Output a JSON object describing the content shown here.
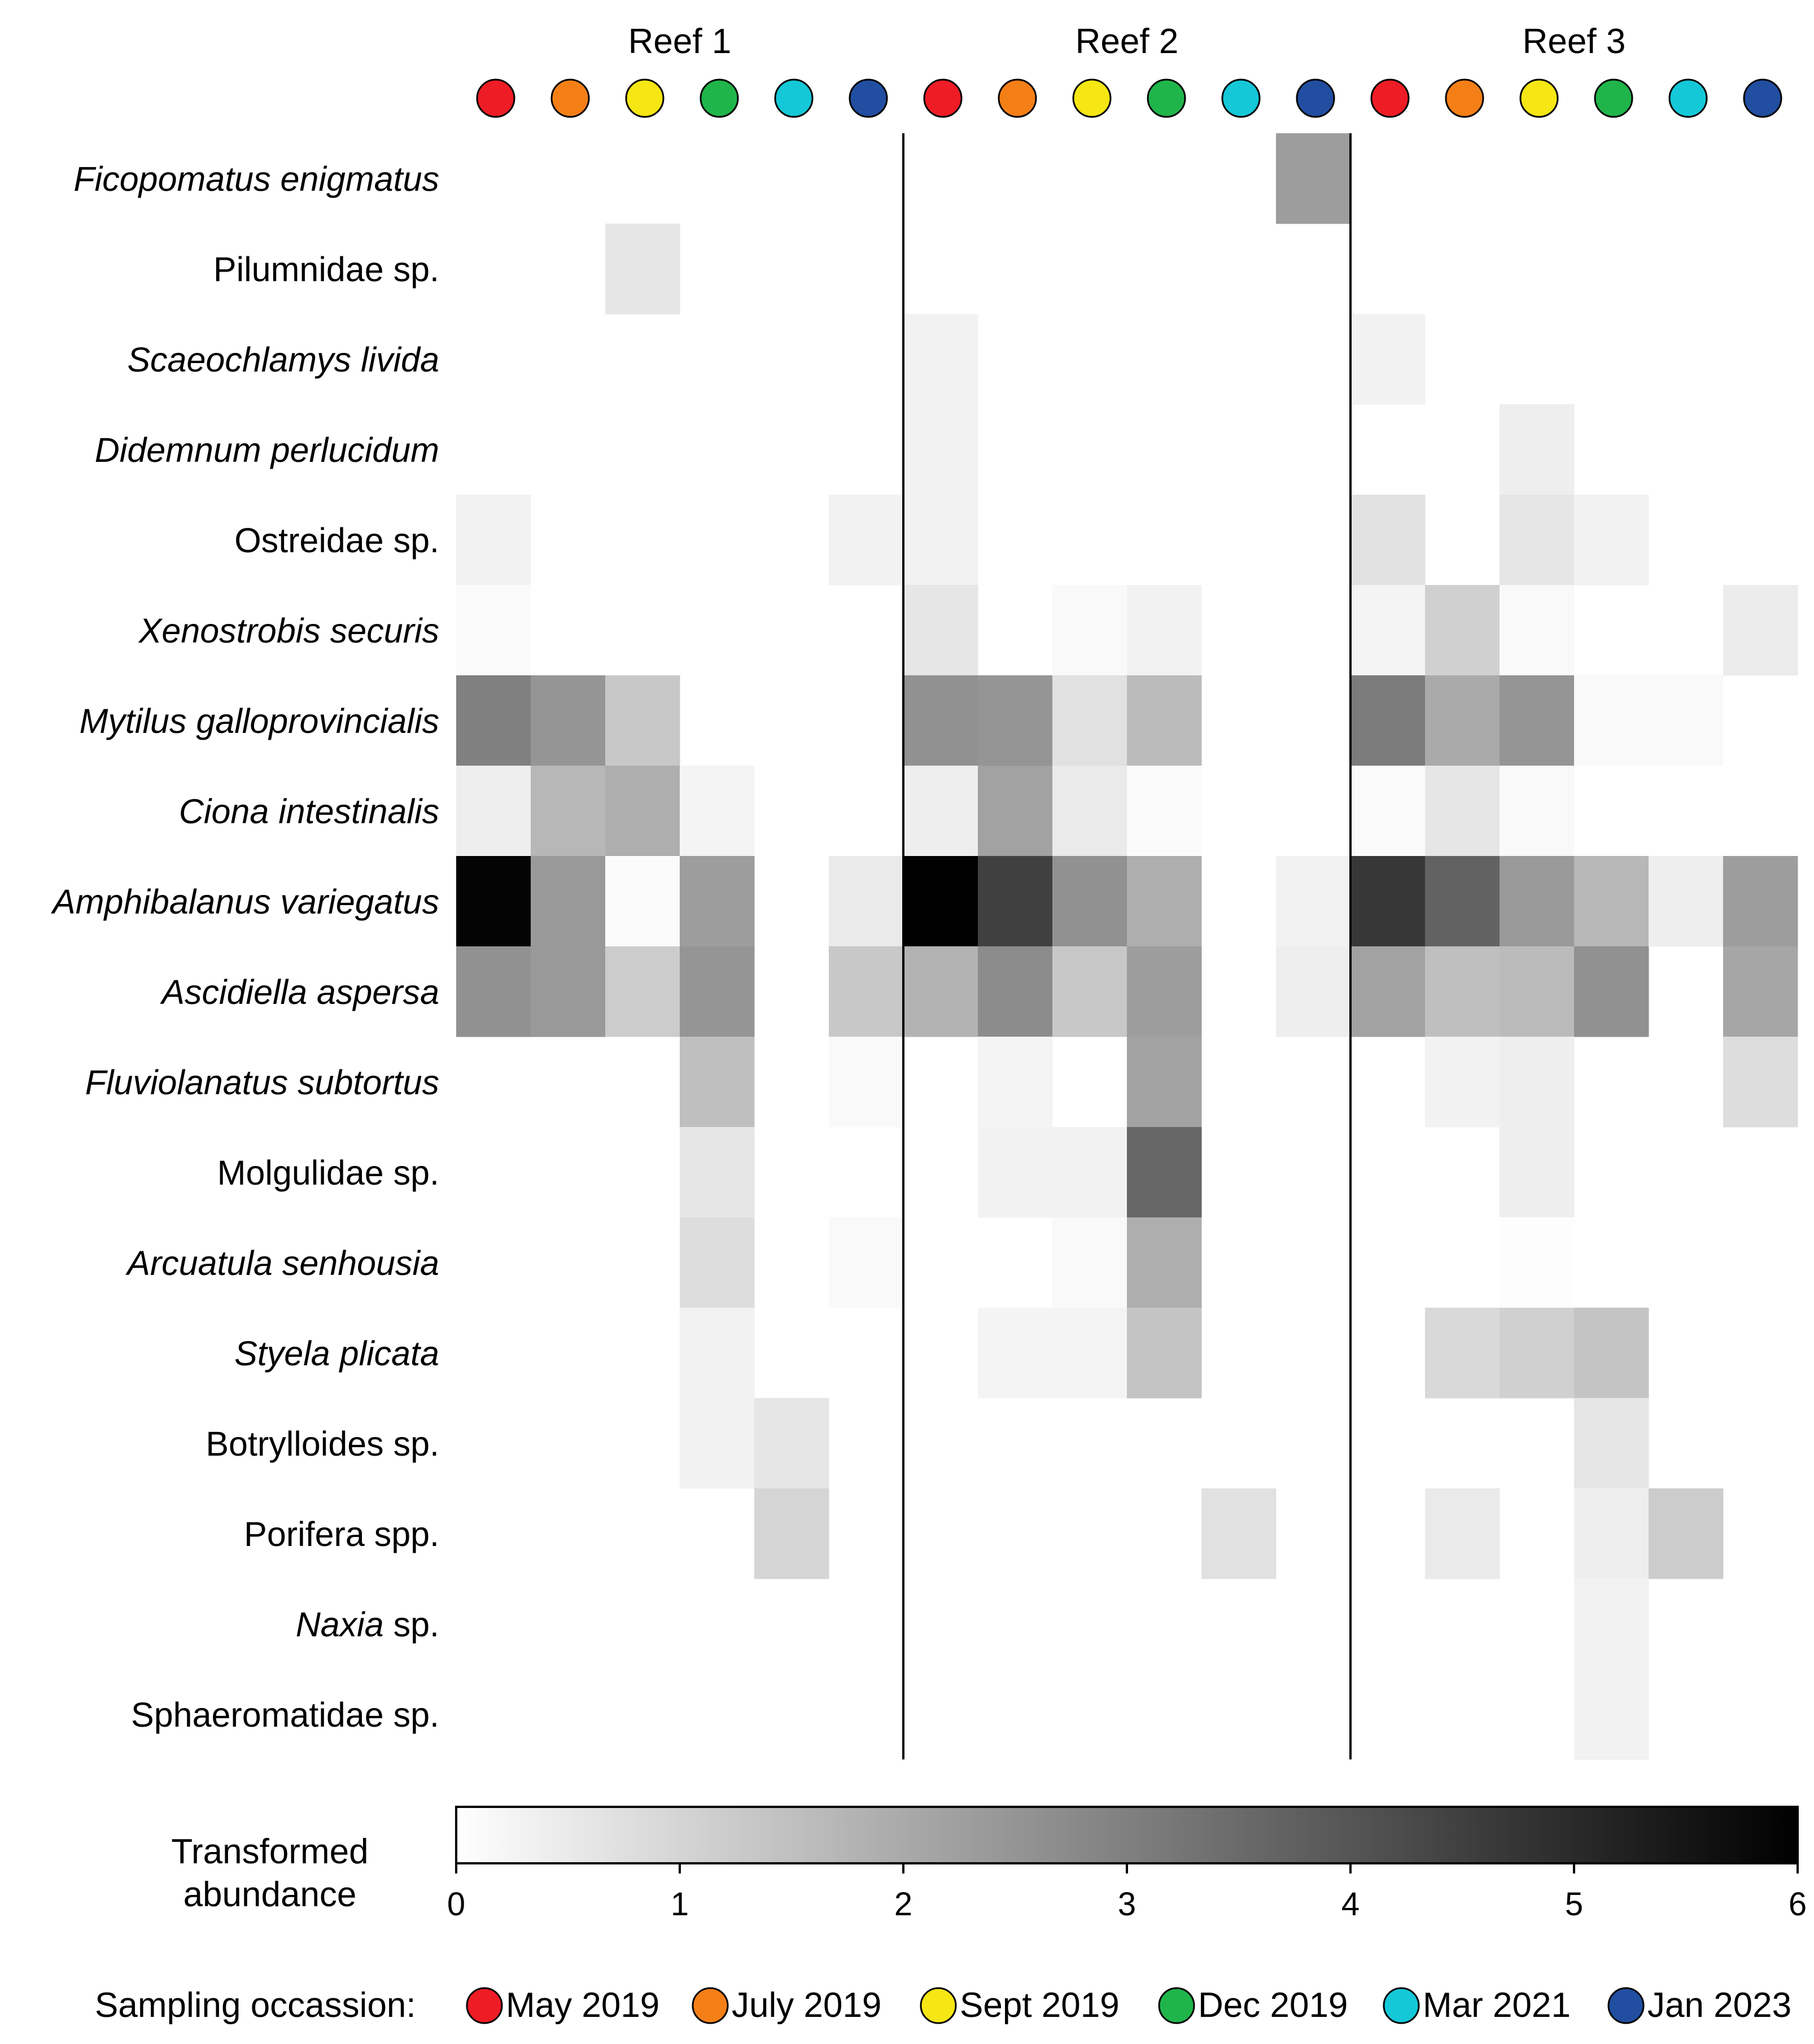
{
  "chart_data": {
    "type": "heatmap",
    "reefs": [
      "Reef 1",
      "Reef 2",
      "Reef 3"
    ],
    "occasions": [
      "May 2019",
      "July 2019",
      "Sept 2019",
      "Dec 2019",
      "Mar 2021",
      "Jan 2023"
    ],
    "occasion_colors": [
      "#ee1c25",
      "#f57f17",
      "#f5e614",
      "#1fb54a",
      "#14c8d8",
      "#214ea1"
    ],
    "species": [
      {
        "name": "Ficopomatus enigmatus",
        "italic": "Ficopomatus enigmatus",
        "rest": ""
      },
      {
        "name": "Pilumnidae sp.",
        "italic": "",
        "rest": "Pilumnidae sp."
      },
      {
        "name": "Scaeochlamys livida",
        "italic": "Scaeochlamys livida",
        "rest": ""
      },
      {
        "name": "Didemnum perlucidum",
        "italic": "Didemnum perlucidum",
        "rest": ""
      },
      {
        "name": "Ostreidae sp.",
        "italic": "",
        "rest": "Ostreidae sp."
      },
      {
        "name": "Xenostrobis securis",
        "italic": "Xenostrobis securis",
        "rest": ""
      },
      {
        "name": "Mytilus galloprovincialis",
        "italic": "Mytilus galloprovincialis",
        "rest": ""
      },
      {
        "name": "Ciona intestinalis",
        "italic": "Ciona intestinalis",
        "rest": ""
      },
      {
        "name": "Amphibalanus variegatus",
        "italic": "Amphibalanus variegatus",
        "rest": ""
      },
      {
        "name": "Ascidiella aspersa",
        "italic": "Ascidiella aspersa",
        "rest": ""
      },
      {
        "name": "Fluviolanatus subtortus",
        "italic": "Fluviolanatus subtortus",
        "rest": ""
      },
      {
        "name": "Molgulidae sp.",
        "italic": "",
        "rest": "Molgulidae sp."
      },
      {
        "name": "Arcuatula senhousia",
        "italic": "Arcuatula senhousia",
        "rest": ""
      },
      {
        "name": "Styela plicata",
        "italic": "Styela plicata",
        "rest": ""
      },
      {
        "name": "Botrylloides sp.",
        "italic": "",
        "rest": "Botrylloides sp."
      },
      {
        "name": "Porifera spp.",
        "italic": "",
        "rest": "Porifera spp."
      },
      {
        "name": "Naxia sp.",
        "italic": "Naxia",
        "rest": " sp."
      },
      {
        "name": "Sphaeromatidae sp.",
        "italic": "",
        "rest": "Sphaeromatidae sp."
      }
    ],
    "values": [
      [
        0,
        0,
        0,
        0,
        0,
        0,
        0,
        0,
        0,
        0,
        0,
        2.3,
        0,
        0,
        0,
        0,
        0,
        0
      ],
      [
        0,
        0,
        0.6,
        0,
        0,
        0,
        0,
        0,
        0,
        0,
        0,
        0,
        0,
        0,
        0,
        0,
        0,
        0
      ],
      [
        0,
        0,
        0,
        0,
        0,
        0,
        0.3,
        0,
        0,
        0,
        0,
        0,
        0.3,
        0,
        0,
        0,
        0,
        0
      ],
      [
        0,
        0,
        0,
        0,
        0,
        0,
        0.3,
        0,
        0,
        0,
        0,
        0,
        0,
        0,
        0.4,
        0,
        0,
        0
      ],
      [
        0.3,
        0,
        0,
        0,
        0,
        0.3,
        0.3,
        0,
        0,
        0,
        0,
        0,
        0.7,
        0,
        0.6,
        0.3,
        0,
        0
      ],
      [
        0.1,
        0,
        0,
        0,
        0,
        0,
        0.6,
        0,
        0.15,
        0.3,
        0,
        0,
        0.25,
        1.1,
        0.15,
        0,
        0,
        0.45
      ],
      [
        3.0,
        2.5,
        1.3,
        0,
        0,
        0,
        2.6,
        2.5,
        0.7,
        1.6,
        0,
        0,
        3.1,
        2.0,
        2.5,
        0.15,
        0.15,
        0
      ],
      [
        0.4,
        1.7,
        1.9,
        0.25,
        0,
        0,
        0.4,
        2.2,
        0.5,
        0.1,
        0,
        0,
        0.1,
        0.6,
        0.15,
        0,
        0,
        0
      ],
      [
        5.9,
        2.4,
        0.1,
        2.3,
        0,
        0.5,
        6.0,
        4.5,
        2.6,
        1.9,
        0,
        0.3,
        4.7,
        3.7,
        2.4,
        1.7,
        0.4,
        2.3
      ],
      [
        2.6,
        2.4,
        1.2,
        2.5,
        0,
        1.3,
        1.8,
        2.7,
        1.3,
        2.3,
        0,
        0.4,
        2.2,
        1.5,
        1.6,
        2.6,
        0,
        2.1
      ],
      [
        0,
        0,
        0,
        1.5,
        0,
        0.15,
        0,
        0.25,
        0,
        2.2,
        0,
        0,
        0,
        0.3,
        0.4,
        0,
        0,
        0.8
      ],
      [
        0,
        0,
        0,
        0.6,
        0,
        0,
        0,
        0.3,
        0.3,
        3.6,
        0,
        0,
        0,
        0,
        0.4,
        0,
        0,
        0
      ],
      [
        0,
        0,
        0,
        0.8,
        0,
        0.15,
        0,
        0,
        0.15,
        1.9,
        0,
        0,
        0,
        0,
        0.05,
        0,
        0,
        0
      ],
      [
        0,
        0,
        0,
        0.3,
        0,
        0,
        0,
        0.25,
        0.25,
        1.4,
        0,
        0,
        0,
        0.9,
        1.1,
        1.4,
        0,
        0
      ],
      [
        0,
        0,
        0,
        0.3,
        0.6,
        0,
        0,
        0,
        0,
        0,
        0,
        0,
        0,
        0,
        0,
        0.6,
        0,
        0
      ],
      [
        0,
        0,
        0,
        0,
        1.0,
        0,
        0,
        0,
        0,
        0,
        0.7,
        0,
        0,
        0.5,
        0,
        0.4,
        1.2,
        0
      ],
      [
        0,
        0,
        0,
        0,
        0,
        0,
        0,
        0,
        0,
        0,
        0,
        0,
        0,
        0,
        0,
        0.3,
        0,
        0
      ],
      [
        0,
        0,
        0,
        0,
        0,
        0,
        0,
        0,
        0,
        0,
        0,
        0,
        0,
        0,
        0,
        0.3,
        0,
        0
      ]
    ],
    "colorbar": {
      "label_line1": "Transformed",
      "label_line2": "abundance",
      "min": 0,
      "max": 6,
      "ticks": [
        "0",
        "1",
        "2",
        "3",
        "4",
        "5",
        "6"
      ],
      "low_color": "#ffffff",
      "high_color": "#000000"
    },
    "legend": {
      "title": "Sampling occassion:",
      "placement": "bottom"
    }
  }
}
